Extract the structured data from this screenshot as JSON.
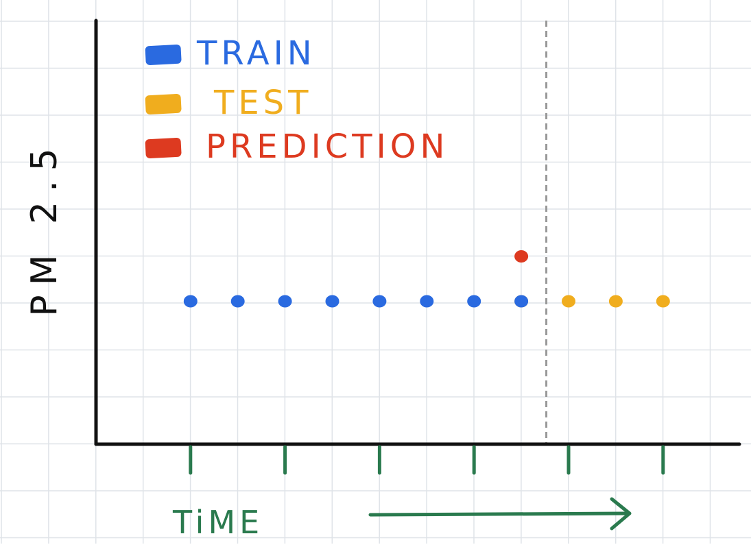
{
  "chart_data": {
    "type": "scatter",
    "title": "",
    "xlabel": "TiME",
    "ylabel": "PM 2.5",
    "colors": {
      "train": "#2a6ae0",
      "test": "#f0ad1e",
      "prediction": "#dd3a20",
      "axis_ticks": "#2a7a4e",
      "split_line": "#999999"
    },
    "legend_position": "top-left",
    "grid": true,
    "xlim": [
      0,
      14
    ],
    "ylim": [
      0,
      10
    ],
    "split_x": 9.5,
    "series": [
      {
        "name": "TRAIN",
        "x": [
          2,
          3,
          4,
          5,
          6,
          7,
          8,
          9
        ],
        "y": [
          3,
          3,
          3,
          3,
          3,
          3,
          3,
          3
        ]
      },
      {
        "name": "TEST",
        "x": [
          9,
          10,
          11,
          12
        ],
        "y": [
          3,
          3,
          3,
          3
        ]
      },
      {
        "name": "PREDICTION",
        "x": [
          9
        ],
        "y": [
          4
        ]
      }
    ],
    "x_ticks": [
      2,
      4,
      6,
      8,
      10,
      12
    ]
  }
}
